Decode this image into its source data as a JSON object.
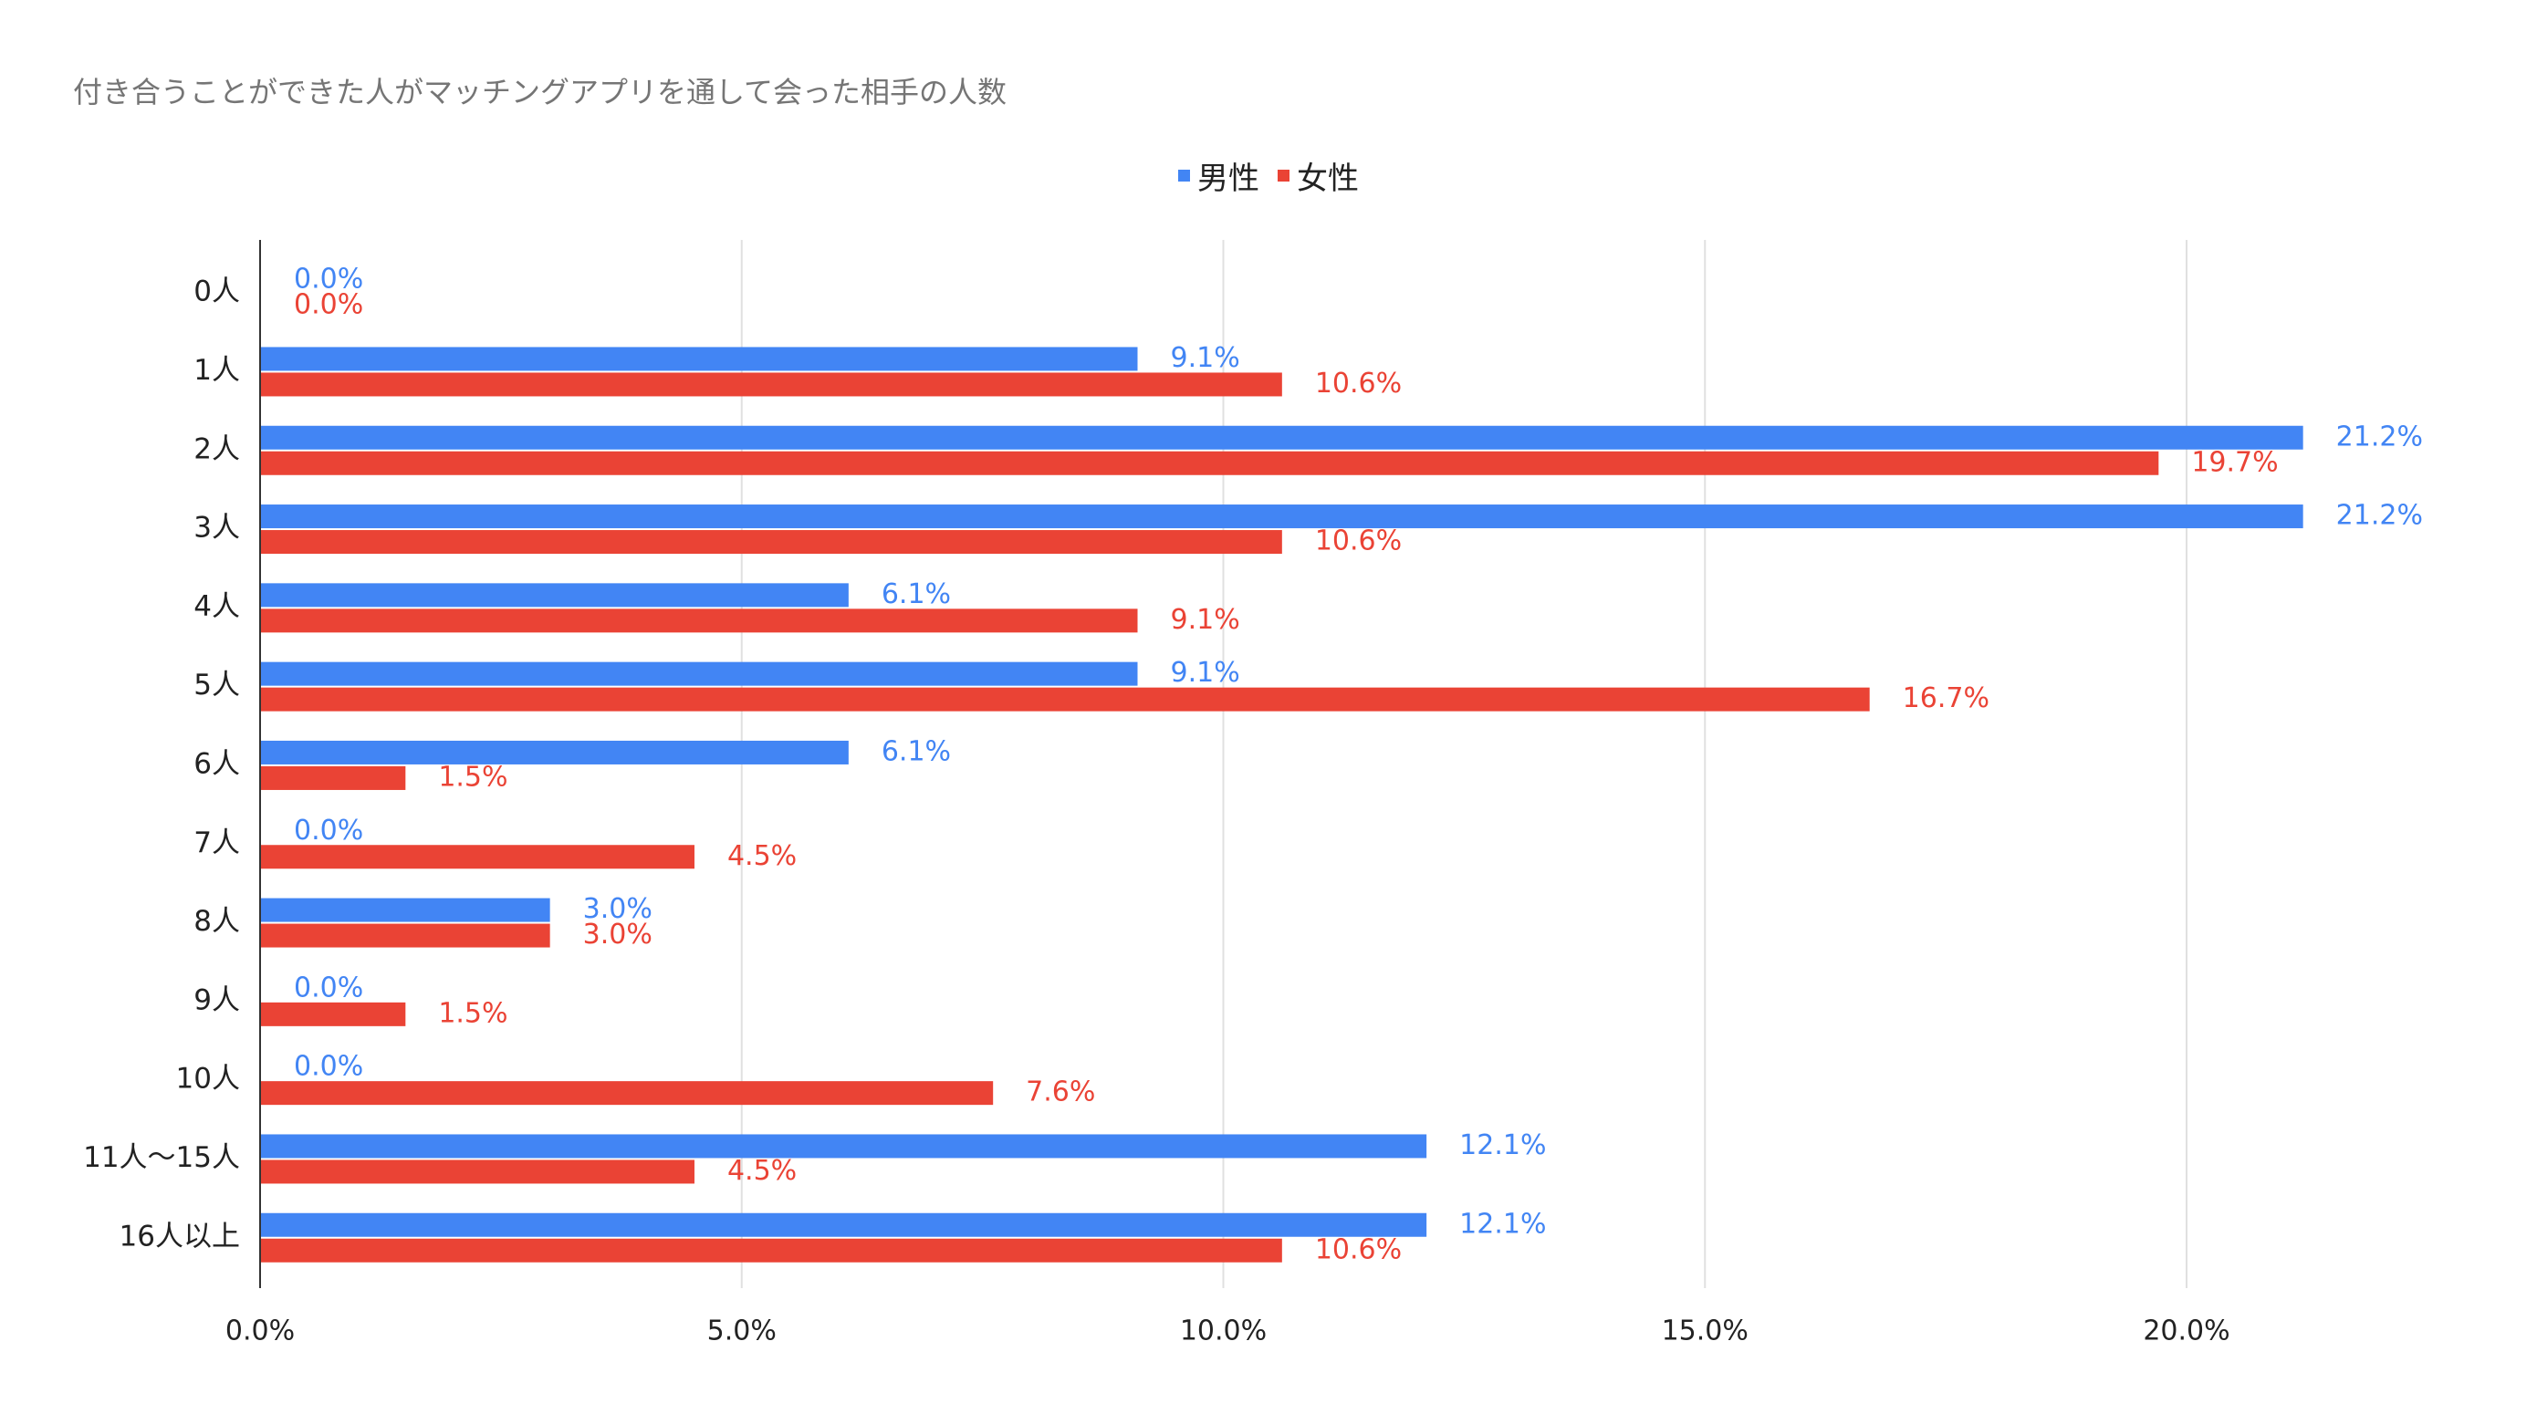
{
  "chart_data": {
    "type": "bar",
    "orientation": "horizontal",
    "title": "付き合うことができた人がマッチングアプリを通して会った相手の人数",
    "categories": [
      "0人",
      "1人",
      "2人",
      "3人",
      "4人",
      "5人",
      "6人",
      "7人",
      "8人",
      "9人",
      "10人",
      "11人～15人",
      "16人以上"
    ],
    "series": [
      {
        "name": "男性",
        "color": "#4285F4",
        "values": [
          0.0,
          9.1,
          21.2,
          21.2,
          6.1,
          9.1,
          6.1,
          0.0,
          3.0,
          0.0,
          0.0,
          12.1,
          12.1
        ]
      },
      {
        "name": "女性",
        "color": "#EA4335",
        "values": [
          0.0,
          10.6,
          19.7,
          10.6,
          9.1,
          16.7,
          1.5,
          4.5,
          3.0,
          1.5,
          7.6,
          4.5,
          10.6
        ]
      }
    ],
    "x_tick_values": [
      0,
      5,
      10,
      15,
      20
    ],
    "x_tick_labels": [
      "0.0%",
      "5.0%",
      "10.0%",
      "15.0%",
      "20.0%"
    ],
    "xlim": [
      0,
      22
    ],
    "grid": true,
    "data_labels": true,
    "legend_position": "top-center"
  }
}
